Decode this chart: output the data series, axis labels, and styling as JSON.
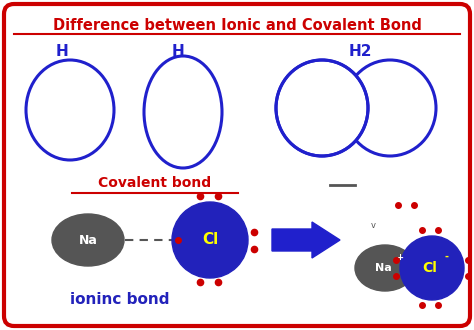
{
  "title": "Difference between Ionic and Covalent Bond",
  "title_color": "#cc0000",
  "bg_color": "#ffffff",
  "border_color": "#cc0000",
  "ellipse_color": "#2020cc",
  "ellipse_lw": 2.2,
  "covalent_label": "Covalent bond",
  "ionic_label": "ioninc bond",
  "h_label": "H",
  "h2_label": "H2",
  "label_color": "#2020cc",
  "red_label_color": "#cc0000",
  "na_color": "#555555",
  "cl_color": "#2222bb",
  "dot_color": "#cc0000",
  "arrow_color": "#2020cc",
  "na_text_color": "#ffffff",
  "cl_text_color": "#ffff00",
  "dash_color": "#555555",
  "minus_color": "#555555"
}
